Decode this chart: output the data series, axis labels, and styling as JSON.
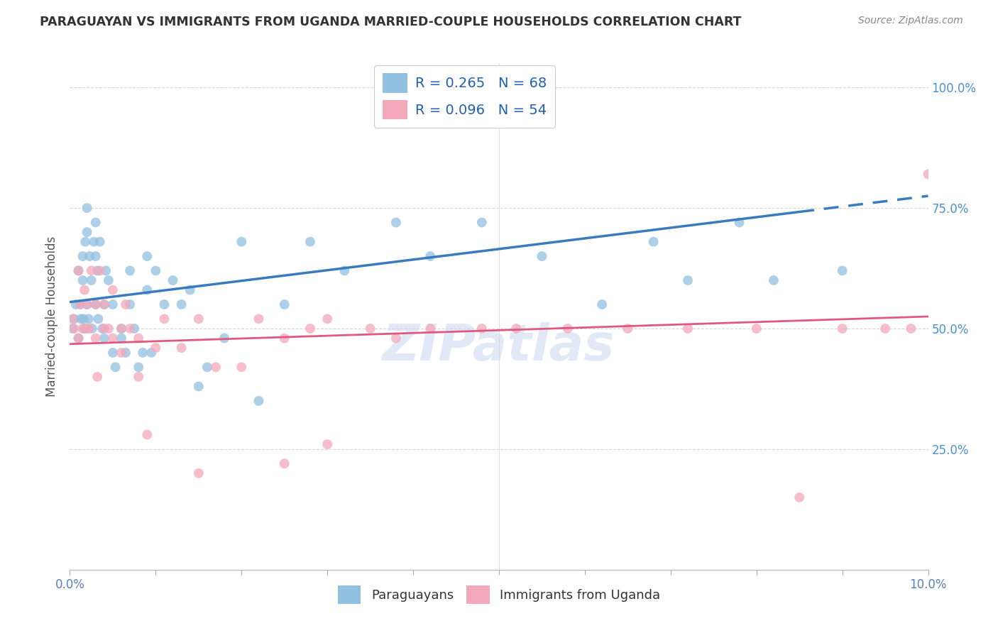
{
  "title": "PARAGUAYAN VS IMMIGRANTS FROM UGANDA MARRIED-COUPLE HOUSEHOLDS CORRELATION CHART",
  "source": "Source: ZipAtlas.com",
  "ylabel": "Married-couple Households",
  "legend_R1": "R = 0.265",
  "legend_N1": "N = 68",
  "legend_R2": "R = 0.096",
  "legend_N2": "N = 54",
  "blue_color": "#92c0e0",
  "pink_color": "#f4a8ba",
  "trendline_blue": "#3a7bbf",
  "trendline_pink": "#e05880",
  "xlim": [
    0.0,
    0.1
  ],
  "ylim": [
    0.0,
    1.05
  ],
  "y_ticks": [
    0.25,
    0.5,
    0.75,
    1.0
  ],
  "y_tick_labels": [
    "25.0%",
    "50.0%",
    "75.0%",
    "100.0%"
  ],
  "x_tick_positions": [
    0.0,
    0.01,
    0.02,
    0.03,
    0.04,
    0.05,
    0.06,
    0.07,
    0.08,
    0.09,
    0.1
  ],
  "background_color": "#ffffff",
  "grid_color": "#cccccc",
  "blue_trend_x0": 0.0,
  "blue_trend_y0": 0.555,
  "blue_trend_x1": 0.1,
  "blue_trend_y1": 0.775,
  "blue_trend_solid_end": 0.085,
  "pink_trend_x0": 0.0,
  "pink_trend_y0": 0.468,
  "pink_trend_x1": 0.1,
  "pink_trend_y1": 0.525,
  "watermark": "ZIPatlas",
  "blue_scatter_x": [
    0.0003,
    0.0005,
    0.0007,
    0.001,
    0.001,
    0.0012,
    0.0013,
    0.0015,
    0.0015,
    0.0016,
    0.0017,
    0.0018,
    0.002,
    0.002,
    0.002,
    0.0022,
    0.0023,
    0.0025,
    0.0026,
    0.0028,
    0.003,
    0.003,
    0.003,
    0.0032,
    0.0033,
    0.0035,
    0.0038,
    0.004,
    0.004,
    0.0042,
    0.0045,
    0.005,
    0.005,
    0.0053,
    0.006,
    0.006,
    0.0065,
    0.007,
    0.007,
    0.0075,
    0.008,
    0.0085,
    0.009,
    0.009,
    0.0095,
    0.01,
    0.011,
    0.012,
    0.013,
    0.014,
    0.015,
    0.016,
    0.018,
    0.02,
    0.022,
    0.025,
    0.028,
    0.032,
    0.038,
    0.042,
    0.048,
    0.055,
    0.062,
    0.068,
    0.072,
    0.078,
    0.082,
    0.09
  ],
  "blue_scatter_y": [
    0.5,
    0.52,
    0.55,
    0.48,
    0.62,
    0.55,
    0.52,
    0.6,
    0.65,
    0.52,
    0.5,
    0.68,
    0.75,
    0.7,
    0.55,
    0.52,
    0.65,
    0.6,
    0.5,
    0.68,
    0.72,
    0.65,
    0.55,
    0.62,
    0.52,
    0.68,
    0.5,
    0.55,
    0.48,
    0.62,
    0.6,
    0.55,
    0.45,
    0.42,
    0.48,
    0.5,
    0.45,
    0.55,
    0.62,
    0.5,
    0.42,
    0.45,
    0.65,
    0.58,
    0.45,
    0.62,
    0.55,
    0.6,
    0.55,
    0.58,
    0.38,
    0.42,
    0.48,
    0.68,
    0.35,
    0.55,
    0.68,
    0.62,
    0.72,
    0.65,
    0.72,
    0.65,
    0.55,
    0.68,
    0.6,
    0.72,
    0.6,
    0.62
  ],
  "pink_scatter_x": [
    0.0003,
    0.0005,
    0.001,
    0.001,
    0.0012,
    0.0015,
    0.0017,
    0.002,
    0.002,
    0.0022,
    0.0025,
    0.003,
    0.003,
    0.0032,
    0.0035,
    0.004,
    0.004,
    0.0045,
    0.005,
    0.005,
    0.006,
    0.006,
    0.0065,
    0.007,
    0.008,
    0.008,
    0.009,
    0.01,
    0.011,
    0.013,
    0.015,
    0.017,
    0.02,
    0.022,
    0.025,
    0.028,
    0.03,
    0.035,
    0.038,
    0.042,
    0.048,
    0.052,
    0.058,
    0.065,
    0.072,
    0.08,
    0.085,
    0.09,
    0.095,
    0.098,
    0.1,
    0.025,
    0.03,
    0.015
  ],
  "pink_scatter_y": [
    0.52,
    0.5,
    0.48,
    0.62,
    0.55,
    0.5,
    0.58,
    0.5,
    0.55,
    0.5,
    0.62,
    0.48,
    0.55,
    0.4,
    0.62,
    0.5,
    0.55,
    0.5,
    0.48,
    0.58,
    0.5,
    0.45,
    0.55,
    0.5,
    0.48,
    0.4,
    0.28,
    0.46,
    0.52,
    0.46,
    0.52,
    0.42,
    0.42,
    0.52,
    0.48,
    0.5,
    0.52,
    0.5,
    0.48,
    0.5,
    0.5,
    0.5,
    0.5,
    0.5,
    0.5,
    0.5,
    0.15,
    0.5,
    0.5,
    0.5,
    0.82,
    0.22,
    0.26,
    0.2
  ]
}
